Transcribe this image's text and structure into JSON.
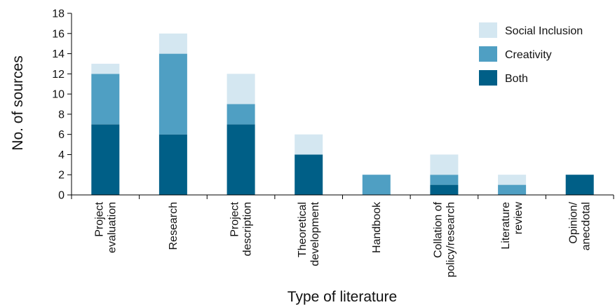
{
  "chart_data": {
    "type": "bar",
    "stacked": true,
    "categories": [
      [
        "Project",
        "evaluation"
      ],
      [
        "Research"
      ],
      [
        "Project",
        "description"
      ],
      [
        "Theoretical",
        "development"
      ],
      [
        "Handbook"
      ],
      [
        "Collation of",
        "policy/research"
      ],
      [
        "Literature",
        "review"
      ],
      [
        "Opinion/",
        "anecdotal"
      ]
    ],
    "series": [
      {
        "name": "Both",
        "color": "#005f87",
        "values": [
          7,
          6,
          7,
          4,
          0,
          1,
          0,
          2
        ]
      },
      {
        "name": "Creativity",
        "color": "#4f9fc3",
        "values": [
          5,
          8,
          2,
          0,
          2,
          1,
          1,
          0
        ]
      },
      {
        "name": "Social Inclusion",
        "color": "#d4e7f1",
        "values": [
          1,
          2,
          3,
          2,
          0,
          2,
          1,
          0
        ]
      }
    ],
    "legend_order": [
      "Social Inclusion",
      "Creativity",
      "Both"
    ],
    "legend_position": "top-right",
    "xlabel": "Type of literature",
    "ylabel": "No. of sources",
    "ylim": [
      0,
      18
    ],
    "yticks": [
      0,
      2,
      4,
      6,
      8,
      10,
      12,
      14,
      16,
      18
    ],
    "grid": false
  }
}
